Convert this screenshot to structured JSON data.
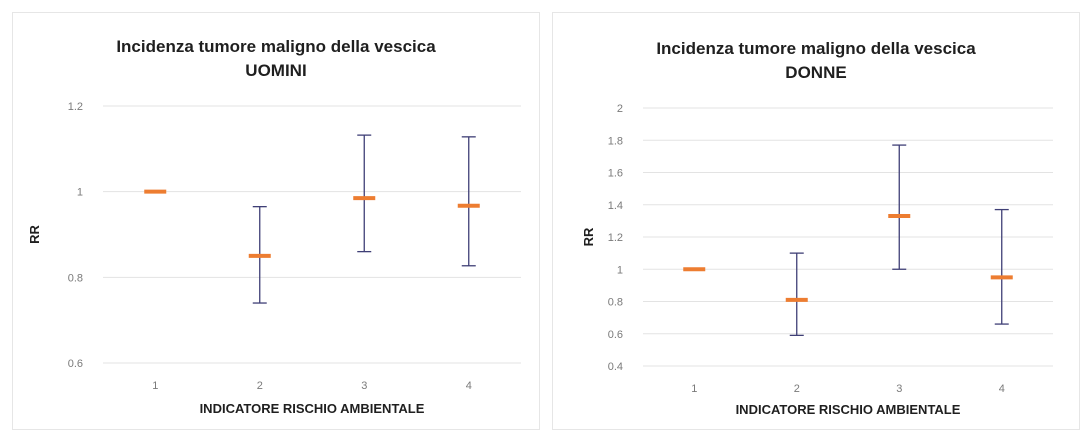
{
  "chart_data": [
    {
      "type": "scatter",
      "title": "Incidenza tumore maligno della vescica",
      "subtitle": "UOMINI",
      "xlabel": "INDICATORE RISCHIO AMBIENTALE",
      "ylabel": "RR",
      "categories": [
        "1",
        "2",
        "3",
        "4"
      ],
      "y_ticks": [
        "0.6",
        "0.8",
        "1",
        "1.2"
      ],
      "ylim": [
        0.6,
        1.2
      ],
      "grid": true,
      "values": [
        1.0,
        0.85,
        0.985,
        0.967
      ],
      "lower": [
        1.0,
        0.74,
        0.86,
        0.827
      ],
      "upper": [
        1.0,
        0.965,
        1.132,
        1.128
      ],
      "marker_color": "#ed7d31",
      "errorbar_color": "#3f3f76"
    },
    {
      "type": "scatter",
      "title": "Incidenza tumore maligno della vescica",
      "subtitle": "DONNE",
      "xlabel": "INDICATORE RISCHIO AMBIENTALE",
      "ylabel": "RR",
      "categories": [
        "1",
        "2",
        "3",
        "4"
      ],
      "y_ticks": [
        "0.4",
        "0.6",
        "0.8",
        "1",
        "1.2",
        "1.4",
        "1.6",
        "1.8",
        "2"
      ],
      "ylim": [
        0.4,
        2.0
      ],
      "grid": true,
      "values": [
        1.0,
        0.81,
        1.33,
        0.95
      ],
      "lower": [
        1.0,
        0.59,
        1.0,
        0.66
      ],
      "upper": [
        1.0,
        1.1,
        1.77,
        1.37
      ],
      "marker_color": "#ed7d31",
      "errorbar_color": "#3f3f76"
    }
  ]
}
